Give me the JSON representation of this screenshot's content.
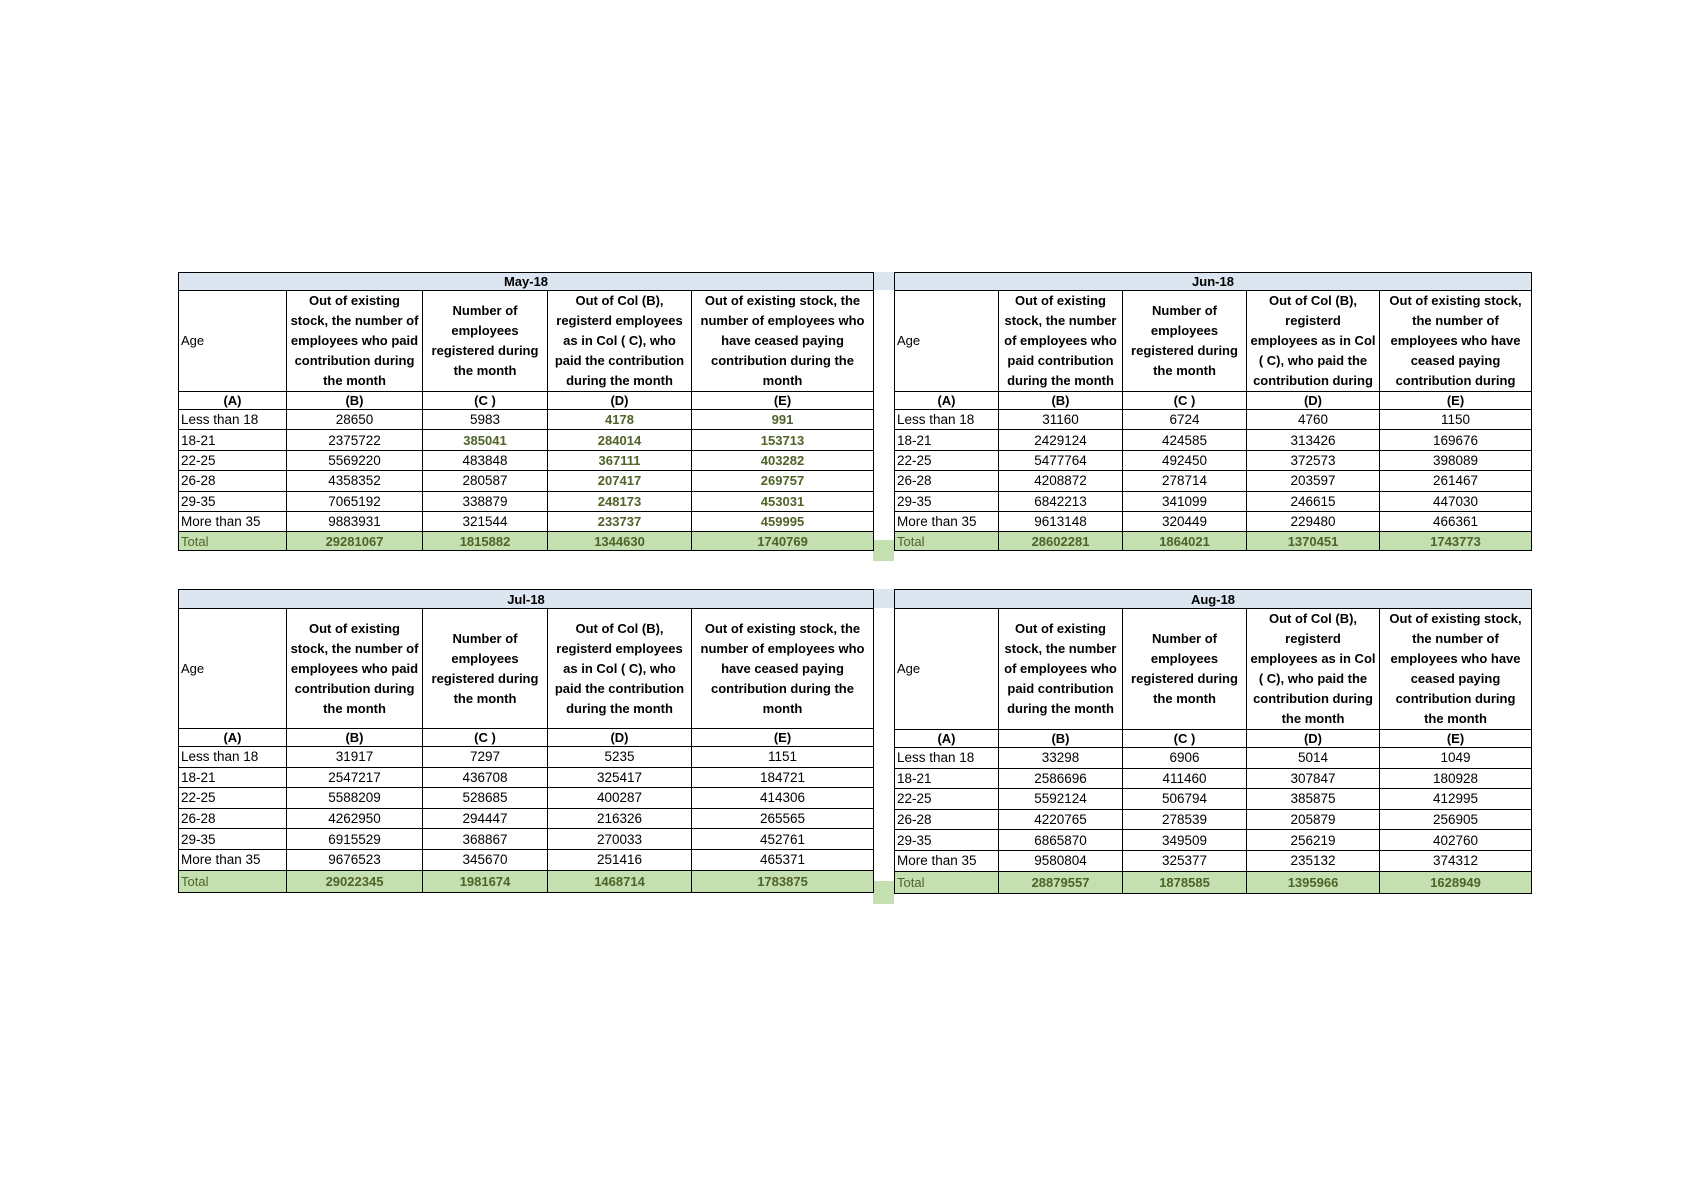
{
  "colors": {
    "title_fill": "#dce6f1",
    "total_fill": "#c4dfb0",
    "highlight_text": "#4f6228"
  },
  "tables": [
    {
      "title": "May-18",
      "headers": [
        "Age",
        "Out of existing\nstock, the number of\nemployees who paid\ncontribution during\nthe month",
        "Number of\nemployees\nregistered during\nthe month",
        "Out of Col (B),\nregisterd employees\nas in Col ( C), who\npaid the contribution\nduring the month",
        "Out of existing stock, the\nnumber of  employees  who\nhave ceased paying\ncontribution during the\nmonth"
      ],
      "letters": [
        "(A)",
        "(B)",
        "(C )",
        "(D)",
        "(E)"
      ],
      "rows": [
        {
          "age": "Less than 18",
          "values": [
            "28650",
            "5983",
            "4178",
            "991"
          ],
          "highlight": [
            false,
            false,
            true,
            true
          ]
        },
        {
          "age": "18-21",
          "values": [
            "2375722",
            "385041",
            "284014",
            "153713"
          ],
          "highlight": [
            false,
            true,
            true,
            true
          ]
        },
        {
          "age": "22-25",
          "values": [
            "5569220",
            "483848",
            "367111",
            "403282"
          ],
          "highlight": [
            false,
            false,
            true,
            true
          ]
        },
        {
          "age": "26-28",
          "values": [
            "4358352",
            "280587",
            "207417",
            "269757"
          ],
          "highlight": [
            false,
            false,
            true,
            true
          ]
        },
        {
          "age": "29-35",
          "values": [
            "7065192",
            "338879",
            "248173",
            "453031"
          ],
          "highlight": [
            false,
            false,
            true,
            true
          ]
        },
        {
          "age": "More than 35",
          "values": [
            "9883931",
            "321544",
            "233737",
            "459995"
          ],
          "highlight": [
            false,
            false,
            true,
            true
          ]
        }
      ],
      "total": {
        "label": "Total",
        "values": [
          "29281067",
          "1815882",
          "1344630",
          "1740769"
        ]
      }
    },
    {
      "title": "Jun-18",
      "headers": [
        "Age",
        "Out of existing\nstock, the number\nof employees who\npaid contribution\nduring the month",
        "Number of\nemployees\nregistered during\nthe month",
        "Out of Col (B),\nregisterd\nemployees as in Col\n( C), who paid the\ncontribution during",
        "Out of existing stock,\nthe number of\nemployees  who have\nceased paying\ncontribution during"
      ],
      "letters": [
        "(A)",
        "(B)",
        "(C )",
        "(D)",
        "(E)"
      ],
      "rows": [
        {
          "age": "Less than 18",
          "values": [
            "31160",
            "6724",
            "4760",
            "1150"
          ]
        },
        {
          "age": "18-21",
          "values": [
            "2429124",
            "424585",
            "313426",
            "169676"
          ]
        },
        {
          "age": "22-25",
          "values": [
            "5477764",
            "492450",
            "372573",
            "398089"
          ]
        },
        {
          "age": "26-28",
          "values": [
            "4208872",
            "278714",
            "203597",
            "261467"
          ]
        },
        {
          "age": "29-35",
          "values": [
            "6842213",
            "341099",
            "246615",
            "447030"
          ]
        },
        {
          "age": "More than 35",
          "values": [
            "9613148",
            "320449",
            "229480",
            "466361"
          ]
        }
      ],
      "total": {
        "label": "Total",
        "values": [
          "28602281",
          "1864021",
          "1370451",
          "1743773"
        ]
      }
    },
    {
      "title": "Jul-18",
      "headers": [
        "Age",
        "Out of existing\nstock, the number of\nemployees who paid\ncontribution during\nthe month",
        "Number of\nemployees\nregistered during\nthe month",
        "Out of Col (B),\nregisterd employees\nas in Col ( C), who\npaid the contribution\nduring the month",
        "Out of existing stock, the\nnumber of  employees  who\nhave ceased paying\ncontribution during the\nmonth"
      ],
      "letters": [
        "(A)",
        "(B)",
        "(C )",
        "(D)",
        "(E)"
      ],
      "rows": [
        {
          "age": "Less than 18",
          "values": [
            "31917",
            "7297",
            "5235",
            "1151"
          ]
        },
        {
          "age": "18-21",
          "values": [
            "2547217",
            "436708",
            "325417",
            "184721"
          ]
        },
        {
          "age": "22-25",
          "values": [
            "5588209",
            "528685",
            "400287",
            "414306"
          ]
        },
        {
          "age": "26-28",
          "values": [
            "4262950",
            "294447",
            "216326",
            "265565"
          ]
        },
        {
          "age": "29-35",
          "values": [
            "6915529",
            "368867",
            "270033",
            "452761"
          ]
        },
        {
          "age": "More than 35",
          "values": [
            "9676523",
            "345670",
            "251416",
            "465371"
          ]
        }
      ],
      "total": {
        "label": "Total",
        "values": [
          "29022345",
          "1981674",
          "1468714",
          "1783875"
        ]
      }
    },
    {
      "title": "Aug-18",
      "headers": [
        "Age",
        "Out of existing\nstock, the number\nof employees who\npaid contribution\nduring the month",
        "Number of\nemployees\nregistered during\nthe month",
        "Out of Col (B),\nregisterd\nemployees as in Col\n( C), who paid the\ncontribution during\nthe month",
        "Out of existing stock,\nthe number of\nemployees  who have\nceased paying\ncontribution during\nthe month"
      ],
      "letters": [
        "(A)",
        "(B)",
        "(C )",
        "(D)",
        "(E)"
      ],
      "rows": [
        {
          "age": "Less than 18",
          "values": [
            "33298",
            "6906",
            "5014",
            "1049"
          ]
        },
        {
          "age": "18-21",
          "values": [
            "2586696",
            "411460",
            "307847",
            "180928"
          ]
        },
        {
          "age": "22-25",
          "values": [
            "5592124",
            "506794",
            "385875",
            "412995"
          ]
        },
        {
          "age": "26-28",
          "values": [
            "4220765",
            "278539",
            "205879",
            "256905"
          ]
        },
        {
          "age": "29-35",
          "values": [
            "6865870",
            "349509",
            "256219",
            "402760"
          ]
        },
        {
          "age": "More than 35",
          "values": [
            "9580804",
            "325377",
            "235132",
            "374312"
          ]
        }
      ],
      "total": {
        "label": "Total",
        "values": [
          "28879557",
          "1878585",
          "1395966",
          "1628949"
        ]
      }
    }
  ]
}
